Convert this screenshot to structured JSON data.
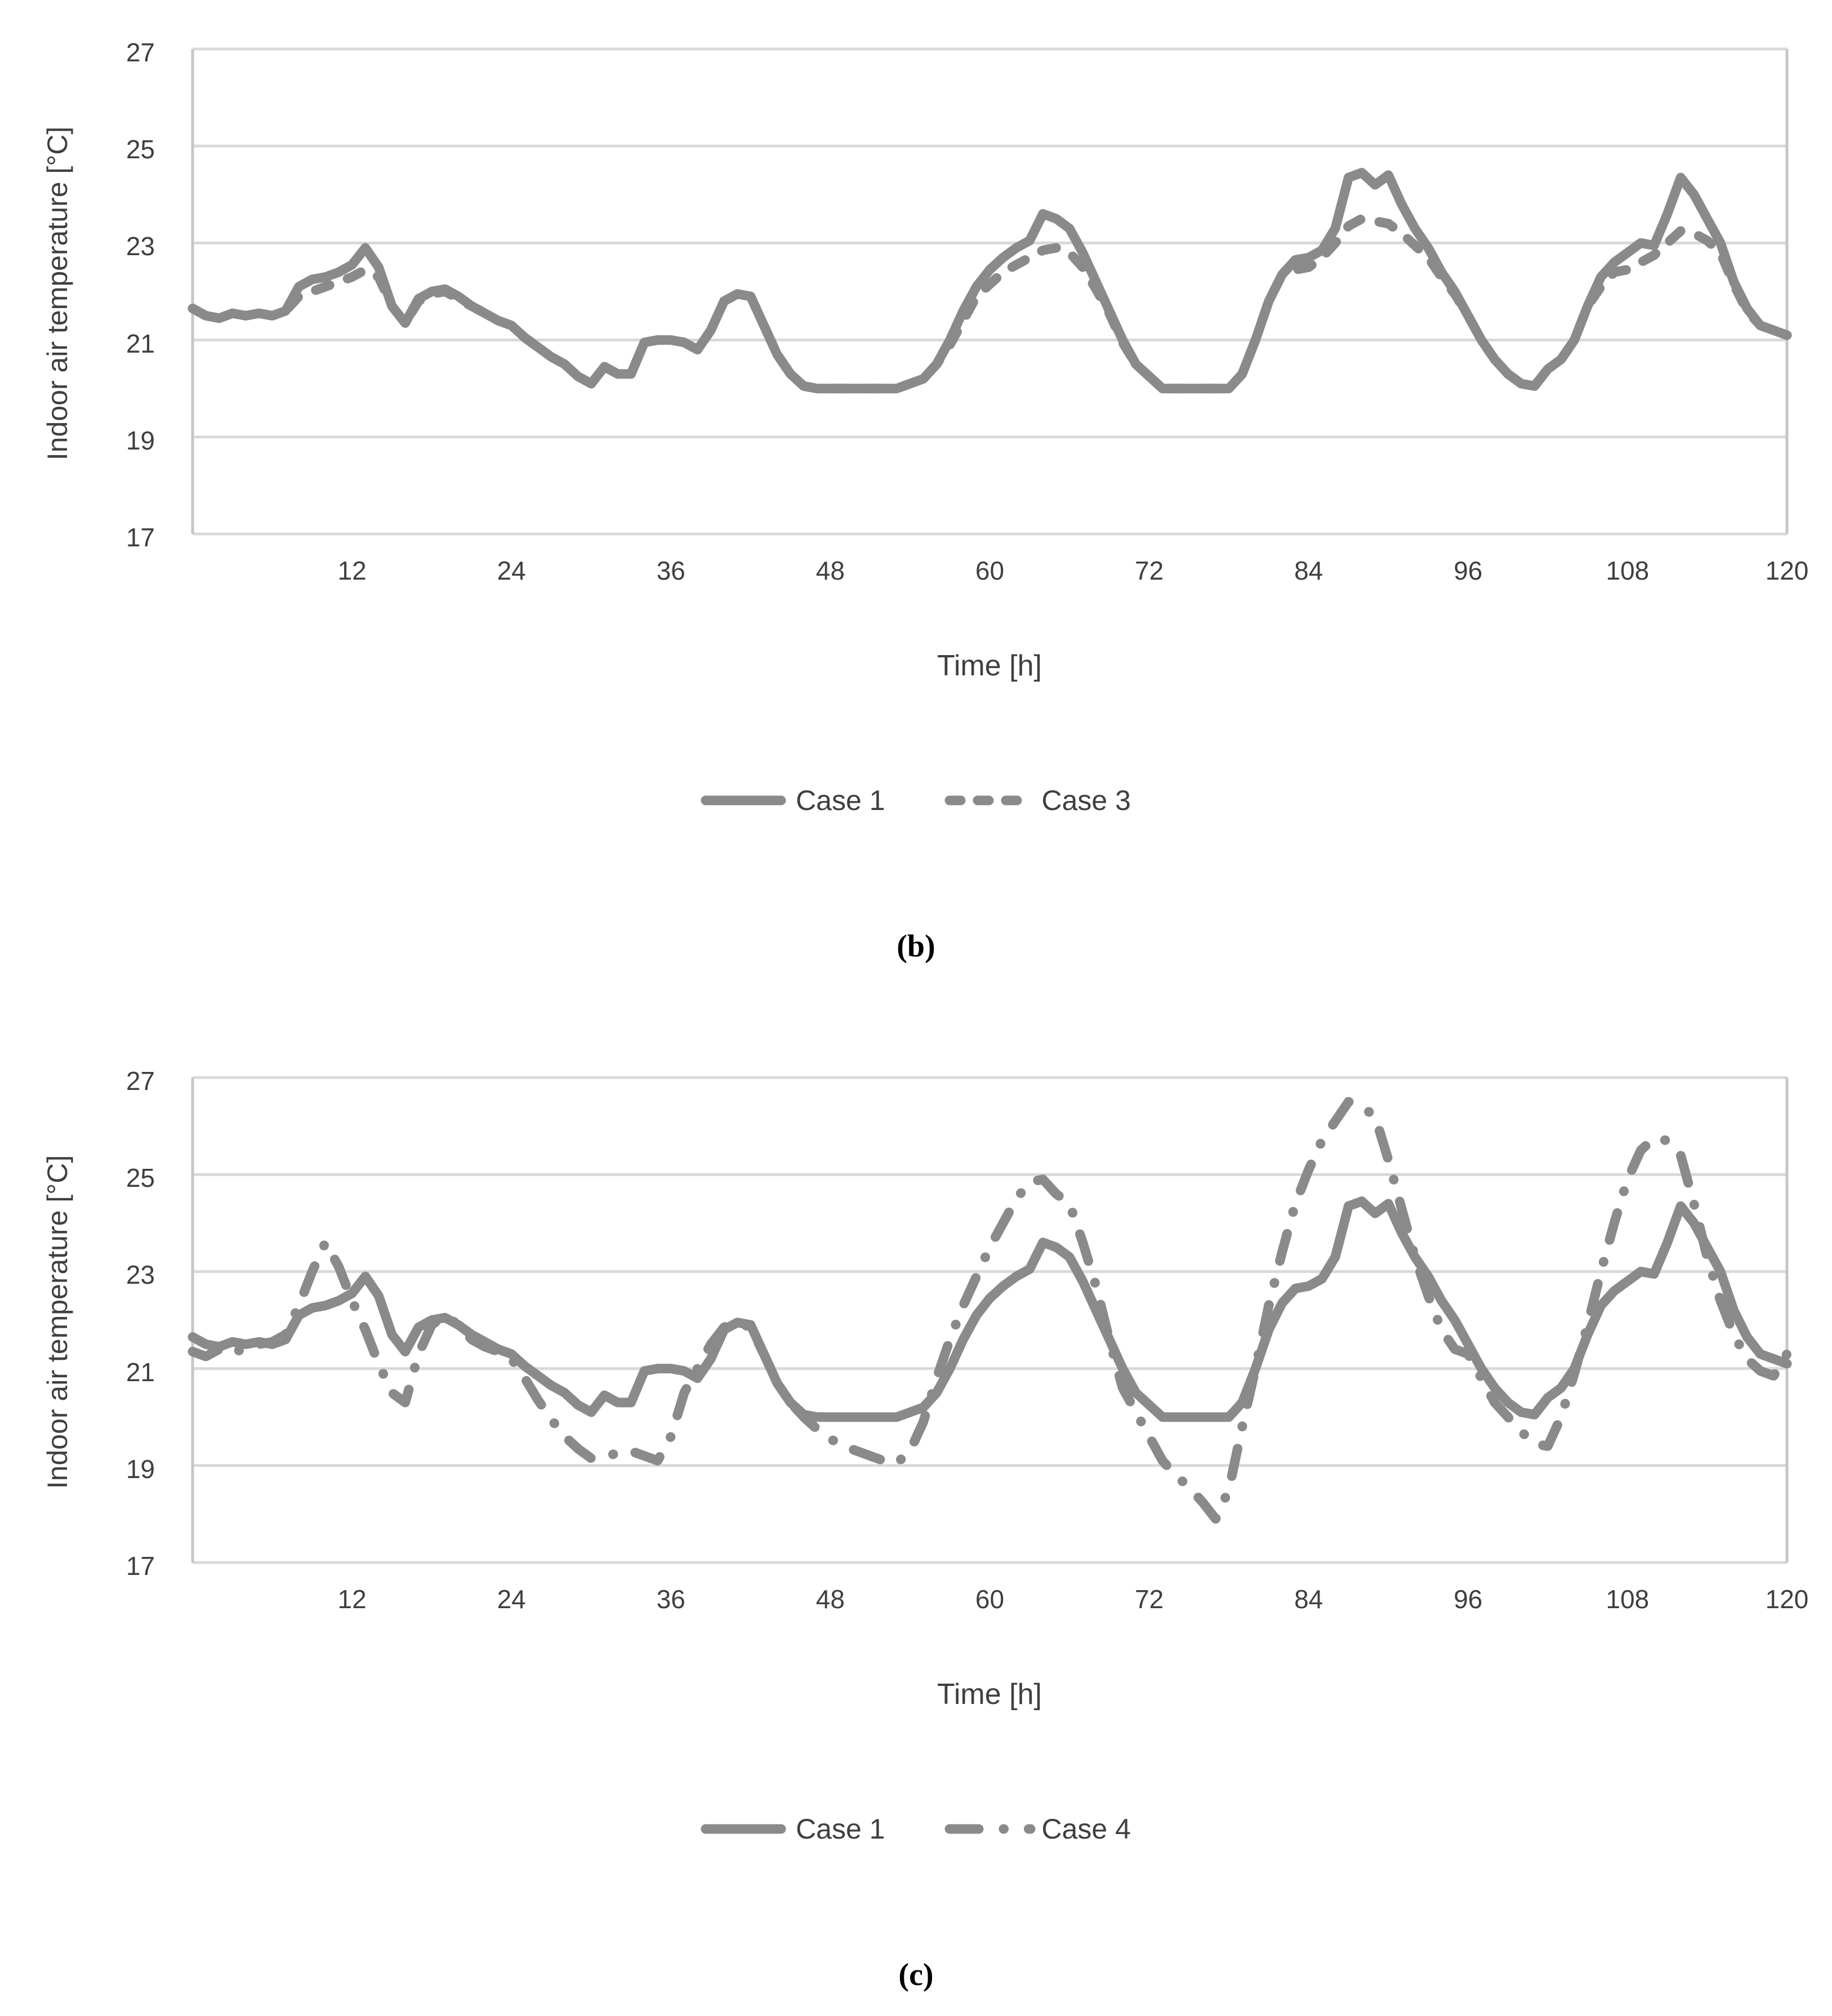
{
  "figure": {
    "line_color": "#8a8a8a",
    "gridline_color": "#d9d9d9",
    "caption_b": "(b)",
    "caption_c": "(c)"
  },
  "chart_data": [
    {
      "type": "line",
      "caption": "(b)",
      "xlabel": "Time [h]",
      "ylabel": "Indoor air temperature [°C]",
      "xlim": [
        0,
        120
      ],
      "ylim": [
        17,
        27
      ],
      "x_ticks": [
        12,
        24,
        36,
        48,
        60,
        72,
        84,
        96,
        108,
        120
      ],
      "y_ticks": [
        27,
        25,
        23,
        21,
        19,
        17
      ],
      "grid": "horizontal",
      "legend_position": "bottom",
      "x_start": 0,
      "x_step": 1,
      "series": [
        {
          "name": "Case 1",
          "style": "solid",
          "values": [
            21.65,
            21.5,
            21.45,
            21.55,
            21.5,
            21.55,
            21.5,
            21.6,
            22.1,
            22.25,
            22.3,
            22.4,
            22.55,
            22.9,
            22.5,
            21.7,
            21.35,
            21.85,
            22.0,
            22.05,
            21.9,
            21.7,
            21.55,
            21.4,
            21.3,
            21.05,
            20.85,
            20.65,
            20.5,
            20.25,
            20.1,
            20.45,
            20.3,
            20.3,
            20.95,
            21.0,
            21.0,
            20.95,
            20.8,
            21.2,
            21.8,
            21.95,
            21.9,
            21.3,
            20.7,
            20.3,
            20.05,
            20.0,
            20.0,
            20.0,
            20.0,
            20.0,
            20.0,
            20.0,
            20.1,
            20.2,
            20.5,
            21.0,
            21.6,
            22.1,
            22.45,
            22.7,
            22.9,
            23.05,
            23.6,
            23.5,
            23.3,
            22.8,
            22.2,
            21.6,
            21.0,
            20.5,
            20.25,
            20.0,
            20.0,
            20.0,
            20.0,
            20.0,
            20.0,
            20.3,
            21.0,
            21.8,
            22.35,
            22.65,
            22.7,
            22.85,
            23.3,
            24.35,
            24.45,
            24.2,
            24.4,
            23.8,
            23.3,
            22.9,
            22.4,
            22.0,
            21.5,
            21.0,
            20.6,
            20.3,
            20.1,
            20.05,
            20.4,
            20.6,
            21.0,
            21.7,
            22.3,
            22.6,
            22.8,
            23.0,
            22.95,
            23.6,
            24.35,
            24.0,
            23.5,
            23.0,
            22.2,
            21.65,
            21.3,
            21.2,
            21.1
          ]
        },
        {
          "name": "Case 3",
          "style": "dashed",
          "values": [
            21.65,
            21.5,
            21.45,
            21.55,
            21.5,
            21.55,
            21.5,
            21.6,
            21.9,
            22.0,
            22.1,
            22.2,
            22.3,
            22.45,
            22.3,
            21.7,
            21.35,
            21.8,
            21.95,
            22.0,
            21.85,
            21.7,
            21.55,
            21.4,
            21.3,
            21.05,
            20.85,
            20.65,
            20.5,
            20.25,
            20.1,
            20.45,
            20.3,
            20.3,
            20.95,
            21.0,
            21.0,
            20.95,
            20.8,
            21.2,
            21.8,
            21.95,
            21.9,
            21.3,
            20.7,
            20.3,
            20.05,
            20.0,
            20.0,
            20.0,
            20.0,
            20.0,
            20.0,
            20.0,
            20.1,
            20.2,
            20.5,
            20.9,
            21.4,
            21.9,
            22.15,
            22.4,
            22.55,
            22.7,
            22.85,
            22.9,
            22.8,
            22.5,
            22.05,
            21.55,
            20.95,
            20.5,
            20.25,
            20.0,
            20.0,
            20.0,
            20.0,
            20.0,
            20.0,
            20.3,
            21.0,
            21.8,
            22.35,
            22.45,
            22.5,
            22.7,
            23.0,
            23.35,
            23.5,
            23.45,
            23.4,
            23.2,
            22.95,
            22.7,
            22.3,
            21.95,
            21.5,
            21.0,
            20.6,
            20.3,
            20.1,
            20.05,
            20.4,
            20.6,
            21.0,
            21.7,
            22.1,
            22.4,
            22.45,
            22.6,
            22.75,
            23.0,
            23.25,
            23.2,
            23.05,
            22.8,
            22.15,
            21.6,
            21.3,
            21.2,
            21.1
          ]
        }
      ]
    },
    {
      "type": "line",
      "caption": "(c)",
      "xlabel": "Time [h]",
      "ylabel": "Indoor air temperature [°C]",
      "xlim": [
        0,
        120
      ],
      "ylim": [
        17,
        27
      ],
      "x_ticks": [
        12,
        24,
        36,
        48,
        60,
        72,
        84,
        96,
        108,
        120
      ],
      "y_ticks": [
        27,
        25,
        23,
        21,
        19,
        17
      ],
      "grid": "horizontal",
      "legend_position": "bottom",
      "x_start": 0,
      "x_step": 1,
      "series": [
        {
          "name": "Case 1",
          "style": "solid",
          "values": [
            21.65,
            21.5,
            21.45,
            21.55,
            21.5,
            21.55,
            21.5,
            21.6,
            22.1,
            22.25,
            22.3,
            22.4,
            22.55,
            22.9,
            22.5,
            21.7,
            21.35,
            21.85,
            22.0,
            22.05,
            21.9,
            21.7,
            21.55,
            21.4,
            21.3,
            21.05,
            20.85,
            20.65,
            20.5,
            20.25,
            20.1,
            20.45,
            20.3,
            20.3,
            20.95,
            21.0,
            21.0,
            20.95,
            20.8,
            21.2,
            21.8,
            21.95,
            21.9,
            21.3,
            20.7,
            20.3,
            20.05,
            20.0,
            20.0,
            20.0,
            20.0,
            20.0,
            20.0,
            20.0,
            20.1,
            20.2,
            20.5,
            21.0,
            21.6,
            22.1,
            22.45,
            22.7,
            22.9,
            23.05,
            23.6,
            23.5,
            23.3,
            22.8,
            22.2,
            21.6,
            21.0,
            20.5,
            20.25,
            20.0,
            20.0,
            20.0,
            20.0,
            20.0,
            20.0,
            20.3,
            21.0,
            21.8,
            22.35,
            22.65,
            22.7,
            22.85,
            23.3,
            24.35,
            24.45,
            24.2,
            24.4,
            23.8,
            23.3,
            22.9,
            22.4,
            22.0,
            21.5,
            21.0,
            20.6,
            20.3,
            20.1,
            20.05,
            20.4,
            20.6,
            21.0,
            21.7,
            22.3,
            22.6,
            22.8,
            23.0,
            22.95,
            23.6,
            24.35,
            24.0,
            23.5,
            23.0,
            22.2,
            21.65,
            21.3,
            21.2,
            21.1
          ]
        },
        {
          "name": "Case 4",
          "style": "dashdot",
          "values": [
            21.35,
            21.25,
            21.4,
            21.3,
            21.45,
            21.5,
            21.55,
            21.7,
            22.3,
            23.0,
            23.6,
            23.1,
            22.4,
            21.8,
            21.1,
            20.5,
            20.3,
            21.3,
            21.9,
            22.1,
            21.9,
            21.6,
            21.45,
            21.35,
            21.2,
            20.8,
            20.35,
            19.95,
            19.6,
            19.35,
            19.15,
            19.2,
            19.25,
            19.3,
            19.2,
            19.1,
            19.6,
            20.5,
            21.0,
            21.5,
            21.85,
            21.95,
            21.85,
            21.3,
            20.7,
            20.3,
            20.0,
            19.75,
            19.55,
            19.4,
            19.3,
            19.2,
            19.1,
            19.05,
            19.3,
            19.9,
            20.8,
            21.6,
            22.3,
            22.9,
            23.5,
            24.0,
            24.5,
            24.85,
            24.9,
            24.6,
            24.4,
            23.6,
            22.7,
            21.6,
            20.6,
            20.1,
            19.6,
            19.1,
            18.8,
            18.55,
            18.25,
            17.9,
            18.5,
            19.8,
            21.0,
            22.3,
            23.4,
            24.4,
            25.1,
            25.7,
            26.1,
            26.5,
            26.4,
            26.2,
            25.3,
            24.3,
            23.3,
            22.5,
            21.8,
            21.4,
            21.3,
            20.8,
            20.3,
            20.0,
            19.7,
            19.45,
            19.4,
            20.0,
            20.9,
            21.9,
            23.0,
            24.0,
            24.9,
            25.5,
            25.75,
            25.7,
            25.4,
            24.4,
            23.3,
            22.4,
            21.7,
            21.2,
            20.95,
            20.85,
            21.3
          ]
        }
      ]
    }
  ]
}
